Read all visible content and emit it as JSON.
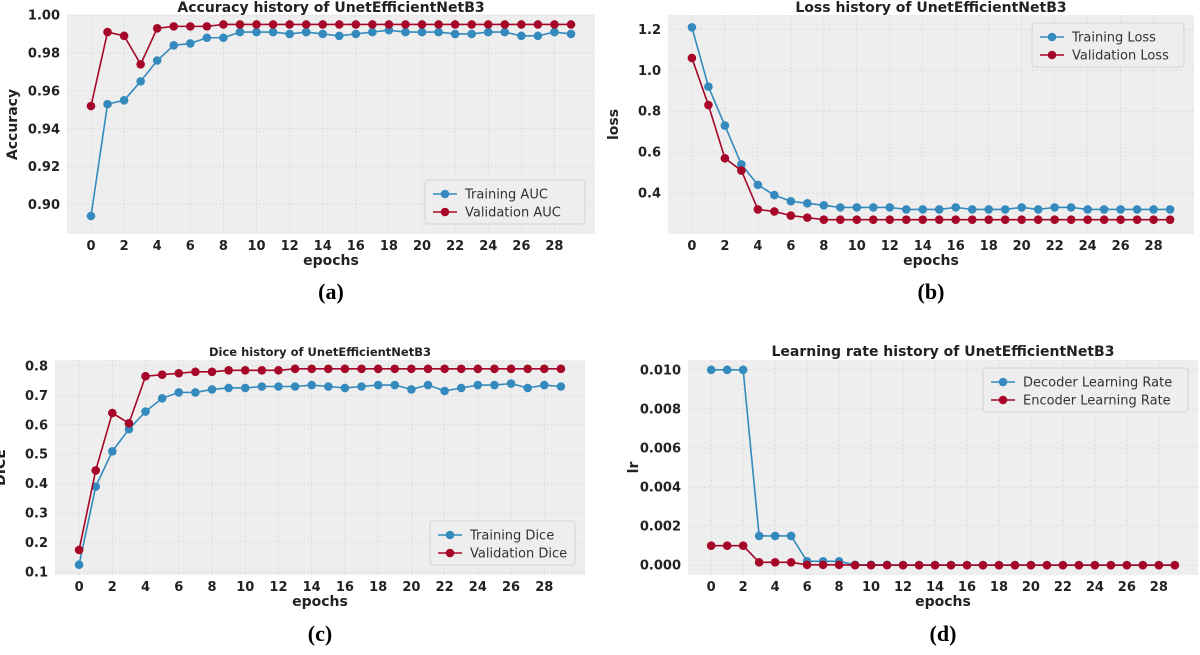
{
  "colors": {
    "blue": "#348abd",
    "red": "#a60628",
    "plot_bg": "#eeeeee",
    "grid": "#d8d8d8"
  },
  "chart_data": [
    {
      "type": "line",
      "caption": "(a)",
      "title": "Accuracy history of UnetEfficientNetB3",
      "xlabel": "epochs",
      "ylabel": "Accuracy",
      "xlim": [
        -1.45,
        30.45
      ],
      "ylim": [
        0.8845,
        1.0
      ],
      "xticks": [
        0,
        2,
        4,
        6,
        8,
        10,
        12,
        14,
        16,
        18,
        20,
        22,
        24,
        26,
        28
      ],
      "yticks": [
        0.9,
        0.92,
        0.94,
        0.96,
        0.98,
        1.0
      ],
      "ytick_labels": [
        "0.90",
        "0.92",
        "0.94",
        "0.96",
        "0.98",
        "1.00"
      ],
      "legend_pos": "bottom-right",
      "x": [
        0,
        1,
        2,
        3,
        4,
        5,
        6,
        7,
        8,
        9,
        10,
        11,
        12,
        13,
        14,
        15,
        16,
        17,
        18,
        19,
        20,
        21,
        22,
        23,
        24,
        25,
        26,
        27,
        28,
        29
      ],
      "series": [
        {
          "name": "Training AUC",
          "color": "blue",
          "values": [
            0.894,
            0.953,
            0.955,
            0.965,
            0.976,
            0.984,
            0.985,
            0.988,
            0.988,
            0.991,
            0.991,
            0.991,
            0.99,
            0.991,
            0.99,
            0.989,
            0.99,
            0.991,
            0.992,
            0.991,
            0.991,
            0.991,
            0.99,
            0.99,
            0.991,
            0.991,
            0.989,
            0.989,
            0.991,
            0.99
          ]
        },
        {
          "name": "Validation AUC",
          "color": "red",
          "values": [
            0.952,
            0.991,
            0.989,
            0.974,
            0.993,
            0.994,
            0.994,
            0.994,
            0.995,
            0.995,
            0.995,
            0.995,
            0.995,
            0.995,
            0.995,
            0.995,
            0.995,
            0.995,
            0.995,
            0.995,
            0.995,
            0.995,
            0.995,
            0.995,
            0.995,
            0.995,
            0.995,
            0.995,
            0.995,
            0.995
          ]
        }
      ]
    },
    {
      "type": "line",
      "caption": "(b)",
      "title": "Loss history of UnetEfficientNetB3",
      "xlabel": "epochs",
      "ylabel": "loss",
      "xlim": [
        -1.45,
        30.45
      ],
      "ylim": [
        0.2,
        1.27
      ],
      "xticks": [
        0,
        2,
        4,
        6,
        8,
        10,
        12,
        14,
        16,
        18,
        20,
        22,
        24,
        26,
        28
      ],
      "yticks": [
        0.4,
        0.6,
        0.8,
        1.0,
        1.2
      ],
      "ytick_labels": [
        "0.4",
        "0.6",
        "0.8",
        "1.0",
        "1.2"
      ],
      "legend_pos": "top-right",
      "x": [
        0,
        1,
        2,
        3,
        4,
        5,
        6,
        7,
        8,
        9,
        10,
        11,
        12,
        13,
        14,
        15,
        16,
        17,
        18,
        19,
        20,
        21,
        22,
        23,
        24,
        25,
        26,
        27,
        28,
        29
      ],
      "series": [
        {
          "name": "Training Loss",
          "color": "blue",
          "values": [
            1.21,
            0.92,
            0.73,
            0.54,
            0.44,
            0.39,
            0.36,
            0.35,
            0.34,
            0.33,
            0.33,
            0.33,
            0.33,
            0.32,
            0.32,
            0.32,
            0.33,
            0.32,
            0.32,
            0.32,
            0.33,
            0.32,
            0.33,
            0.33,
            0.32,
            0.32,
            0.32,
            0.32,
            0.32,
            0.32
          ]
        },
        {
          "name": "Validation Loss",
          "color": "red",
          "values": [
            1.06,
            0.83,
            0.57,
            0.51,
            0.32,
            0.31,
            0.29,
            0.28,
            0.27,
            0.27,
            0.27,
            0.27,
            0.27,
            0.27,
            0.27,
            0.27,
            0.27,
            0.27,
            0.27,
            0.27,
            0.27,
            0.27,
            0.27,
            0.27,
            0.27,
            0.27,
            0.27,
            0.27,
            0.27,
            0.27
          ]
        }
      ]
    },
    {
      "type": "line",
      "caption": "(c)",
      "title": "Dice history of UnetEfficientNetB3",
      "xlabel": "epochs",
      "ylabel": "DICE",
      "xlim": [
        -1.45,
        30.45
      ],
      "ylim": [
        0.09,
        0.82
      ],
      "xticks": [
        0,
        2,
        4,
        6,
        8,
        10,
        12,
        14,
        16,
        18,
        20,
        22,
        24,
        26,
        28
      ],
      "yticks": [
        0.1,
        0.2,
        0.3,
        0.4,
        0.5,
        0.6,
        0.7,
        0.8
      ],
      "ytick_labels": [
        "0.1",
        "0.2",
        "0.3",
        "0.4",
        "0.5",
        "0.6",
        "0.7",
        "0.8"
      ],
      "legend_pos": "bottom-right",
      "x": [
        0,
        1,
        2,
        3,
        4,
        5,
        6,
        7,
        8,
        9,
        10,
        11,
        12,
        13,
        14,
        15,
        16,
        17,
        18,
        19,
        20,
        21,
        22,
        23,
        24,
        25,
        26,
        27,
        28,
        29
      ],
      "series": [
        {
          "name": "Training Dice",
          "color": "blue",
          "values": [
            0.125,
            0.39,
            0.51,
            0.585,
            0.645,
            0.69,
            0.71,
            0.71,
            0.72,
            0.725,
            0.725,
            0.73,
            0.73,
            0.73,
            0.735,
            0.73,
            0.725,
            0.73,
            0.735,
            0.735,
            0.72,
            0.735,
            0.715,
            0.725,
            0.735,
            0.735,
            0.74,
            0.725,
            0.735,
            0.73
          ]
        },
        {
          "name": "Validation Dice",
          "color": "red",
          "values": [
            0.175,
            0.445,
            0.64,
            0.605,
            0.765,
            0.77,
            0.775,
            0.78,
            0.78,
            0.785,
            0.785,
            0.785,
            0.785,
            0.79,
            0.79,
            0.79,
            0.79,
            0.79,
            0.79,
            0.79,
            0.79,
            0.79,
            0.79,
            0.79,
            0.79,
            0.79,
            0.79,
            0.79,
            0.79,
            0.79
          ]
        }
      ]
    },
    {
      "type": "line",
      "caption": "(d)",
      "title": "Learning rate history of UnetEfficientNetB3",
      "xlabel": "epochs",
      "ylabel": "lr",
      "xlim": [
        -1.45,
        30.45
      ],
      "ylim": [
        -0.0005,
        0.0105
      ],
      "xticks": [
        0,
        2,
        4,
        6,
        8,
        10,
        12,
        14,
        16,
        18,
        20,
        22,
        24,
        26,
        28
      ],
      "yticks": [
        0.0,
        0.002,
        0.004,
        0.006,
        0.008,
        0.01
      ],
      "ytick_labels": [
        "0.000",
        "0.002",
        "0.004",
        "0.006",
        "0.008",
        "0.010"
      ],
      "legend_pos": "top-right",
      "x": [
        0,
        1,
        2,
        3,
        4,
        5,
        6,
        7,
        8,
        9,
        10,
        11,
        12,
        13,
        14,
        15,
        16,
        17,
        18,
        19,
        20,
        21,
        22,
        23,
        24,
        25,
        26,
        27,
        28,
        29
      ],
      "series": [
        {
          "name": "Decoder Learning Rate",
          "color": "blue",
          "values": [
            0.01,
            0.01,
            0.01,
            0.0015,
            0.0015,
            0.0015,
            0.0002,
            0.0002,
            0.0002,
            2e-05,
            2e-05,
            2e-05,
            1e-05,
            1e-05,
            1e-05,
            1e-05,
            1e-05,
            1e-05,
            1e-05,
            1e-05,
            1e-05,
            1e-05,
            1e-05,
            1e-05,
            1e-05,
            1e-05,
            1e-05,
            1e-05,
            1e-05,
            1e-05
          ]
        },
        {
          "name": "Encoder Learning Rate",
          "color": "red",
          "values": [
            0.001,
            0.001,
            0.001,
            0.00015,
            0.00015,
            0.00015,
            2e-05,
            2e-05,
            2e-05,
            2e-06,
            2e-06,
            2e-06,
            1e-06,
            1e-06,
            1e-06,
            1e-06,
            1e-06,
            1e-06,
            1e-06,
            1e-06,
            1e-06,
            1e-06,
            1e-06,
            1e-06,
            1e-06,
            1e-06,
            1e-06,
            1e-06,
            1e-06,
            1e-06
          ]
        }
      ]
    }
  ]
}
